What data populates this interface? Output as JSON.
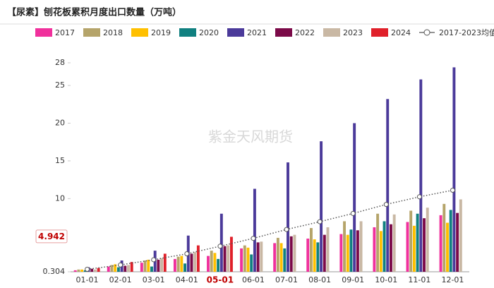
{
  "chart_data": {
    "type": "bar",
    "title": "【尿素】刨花板累积月度出口数量（万吨）",
    "watermark": "紫金天风期货",
    "categories": [
      "01-01",
      "02-01",
      "03-01",
      "04-01",
      "05-01",
      "06-01",
      "07-01",
      "08-01",
      "09-01",
      "10-01",
      "11-01",
      "12-01"
    ],
    "highlight_index": 4,
    "highlight_series": 7,
    "ylim": [
      0.304,
      28
    ],
    "yticks": [
      0.304,
      10,
      15,
      20,
      25,
      28
    ],
    "grid": false,
    "legend": "top",
    "series": [
      {
        "name": "2017",
        "color": "#f0309c",
        "values": [
          0.5,
          1.0,
          1.5,
          2.0,
          2.4,
          3.4,
          4.1,
          4.7,
          5.3,
          6.2,
          6.9,
          7.8
        ]
      },
      {
        "name": "2018",
        "color": "#b5a46a",
        "values": [
          0.6,
          1.2,
          1.8,
          2.3,
          3.1,
          3.8,
          4.8,
          6.1,
          7.0,
          8.0,
          8.4,
          9.3
        ]
      },
      {
        "name": "2019",
        "color": "#ffc000",
        "values": [
          0.6,
          1.3,
          1.9,
          2.4,
          2.8,
          3.5,
          4.1,
          4.6,
          5.2,
          5.7,
          6.4,
          6.8
        ]
      },
      {
        "name": "2020",
        "color": "#108080",
        "values": [
          0.5,
          0.9,
          1.0,
          1.4,
          2.0,
          2.6,
          3.4,
          4.2,
          5.9,
          7.0,
          8.0,
          8.5
        ]
      },
      {
        "name": "2021",
        "color": "#4b3a9a",
        "values": [
          0.9,
          1.8,
          3.1,
          5.1,
          8.0,
          11.3,
          14.8,
          17.6,
          20.0,
          23.2,
          25.8,
          27.4
        ]
      },
      {
        "name": "2022",
        "color": "#7b0a48",
        "values": [
          0.7,
          1.1,
          1.9,
          2.7,
          3.7,
          4.2,
          5.0,
          5.2,
          5.8,
          6.6,
          7.4,
          8.1
        ]
      },
      {
        "name": "2023",
        "color": "#c9b8a4",
        "values": [
          0.6,
          1.2,
          2.1,
          2.9,
          3.8,
          4.3,
          5.2,
          6.2,
          7.0,
          7.9,
          8.8,
          9.9
        ]
      },
      {
        "name": "2024",
        "color": "#e0202a",
        "values": [
          0.8,
          1.6,
          2.7,
          3.8,
          4.942,
          null,
          null,
          null,
          null,
          null,
          null,
          null
        ]
      },
      {
        "name": "2017-2023均值",
        "color": "#555555",
        "type": "line",
        "values": [
          0.63,
          1.21,
          1.9,
          2.69,
          3.69,
          4.73,
          5.91,
          6.94,
          8.03,
          9.23,
          10.24,
          11.11
        ]
      }
    ]
  }
}
